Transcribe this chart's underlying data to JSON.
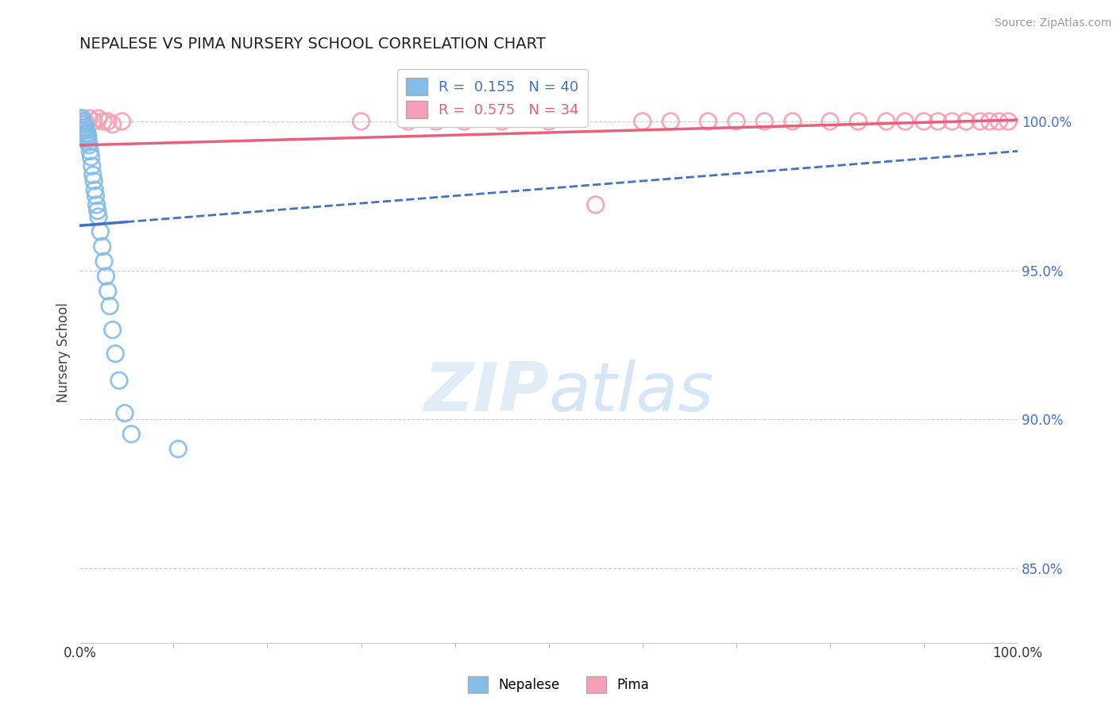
{
  "title": "NEPALESE VS PIMA NURSERY SCHOOL CORRELATION CHART",
  "source": "Source: ZipAtlas.com",
  "ylabel": "Nursery School",
  "ylabel_right_ticks": [
    100.0,
    95.0,
    90.0,
    85.0
  ],
  "xlim": [
    0.0,
    100.0
  ],
  "ylim": [
    82.5,
    102.0
  ],
  "legend_label1": "R =  0.155   N = 40",
  "legend_label2": "R =  0.575   N = 34",
  "nepalese_color": "#85bde8",
  "pima_color": "#f4a0b5",
  "nepalese_trend_color": "#4472c4",
  "pima_trend_color": "#e8607a",
  "watermark_zip": "ZIP",
  "watermark_atlas": "atlas",
  "nepalese_x": [
    0.15,
    0.2,
    0.25,
    0.3,
    0.35,
    0.4,
    0.45,
    0.5,
    0.55,
    0.6,
    0.65,
    0.7,
    0.75,
    0.8,
    0.85,
    0.9,
    0.95,
    1.0,
    1.1,
    1.2,
    1.3,
    1.4,
    1.5,
    1.6,
    1.7,
    1.8,
    1.9,
    2.0,
    2.2,
    2.4,
    2.6,
    2.8,
    3.0,
    3.2,
    3.5,
    3.8,
    4.2,
    4.8,
    5.5,
    10.5
  ],
  "nepalese_y": [
    100.1,
    100.0,
    100.1,
    99.9,
    100.0,
    99.8,
    99.9,
    99.7,
    99.8,
    99.8,
    99.6,
    99.7,
    99.5,
    99.6,
    99.4,
    99.5,
    99.3,
    99.2,
    99.0,
    98.8,
    98.5,
    98.2,
    98.0,
    97.7,
    97.5,
    97.2,
    97.0,
    96.8,
    96.3,
    95.8,
    95.3,
    94.8,
    94.3,
    93.8,
    93.0,
    92.2,
    91.3,
    90.2,
    89.5,
    89.0
  ],
  "pima_x": [
    0.3,
    0.6,
    1.0,
    1.5,
    2.0,
    2.5,
    3.0,
    3.5,
    4.5,
    30.0,
    35.0,
    38.0,
    41.0,
    45.0,
    50.0,
    55.0,
    60.0,
    63.0,
    67.0,
    70.0,
    73.0,
    76.0,
    80.0,
    83.0,
    86.0,
    88.0,
    90.0,
    91.5,
    93.0,
    94.5,
    96.0,
    97.0,
    98.0,
    99.0
  ],
  "pima_y": [
    100.1,
    100.0,
    100.1,
    100.0,
    100.1,
    100.0,
    100.0,
    99.9,
    100.0,
    100.0,
    100.0,
    100.0,
    100.0,
    100.0,
    100.0,
    97.2,
    100.0,
    100.0,
    100.0,
    100.0,
    100.0,
    100.0,
    100.0,
    100.0,
    100.0,
    100.0,
    100.0,
    100.0,
    100.0,
    100.0,
    100.0,
    100.0,
    100.0,
    100.0
  ],
  "nep_trend_x0": 0.0,
  "nep_trend_x1": 100.0,
  "nep_trend_y0": 96.5,
  "nep_trend_y1": 99.0,
  "pima_trend_y0": 99.2,
  "pima_trend_y1": 100.05
}
